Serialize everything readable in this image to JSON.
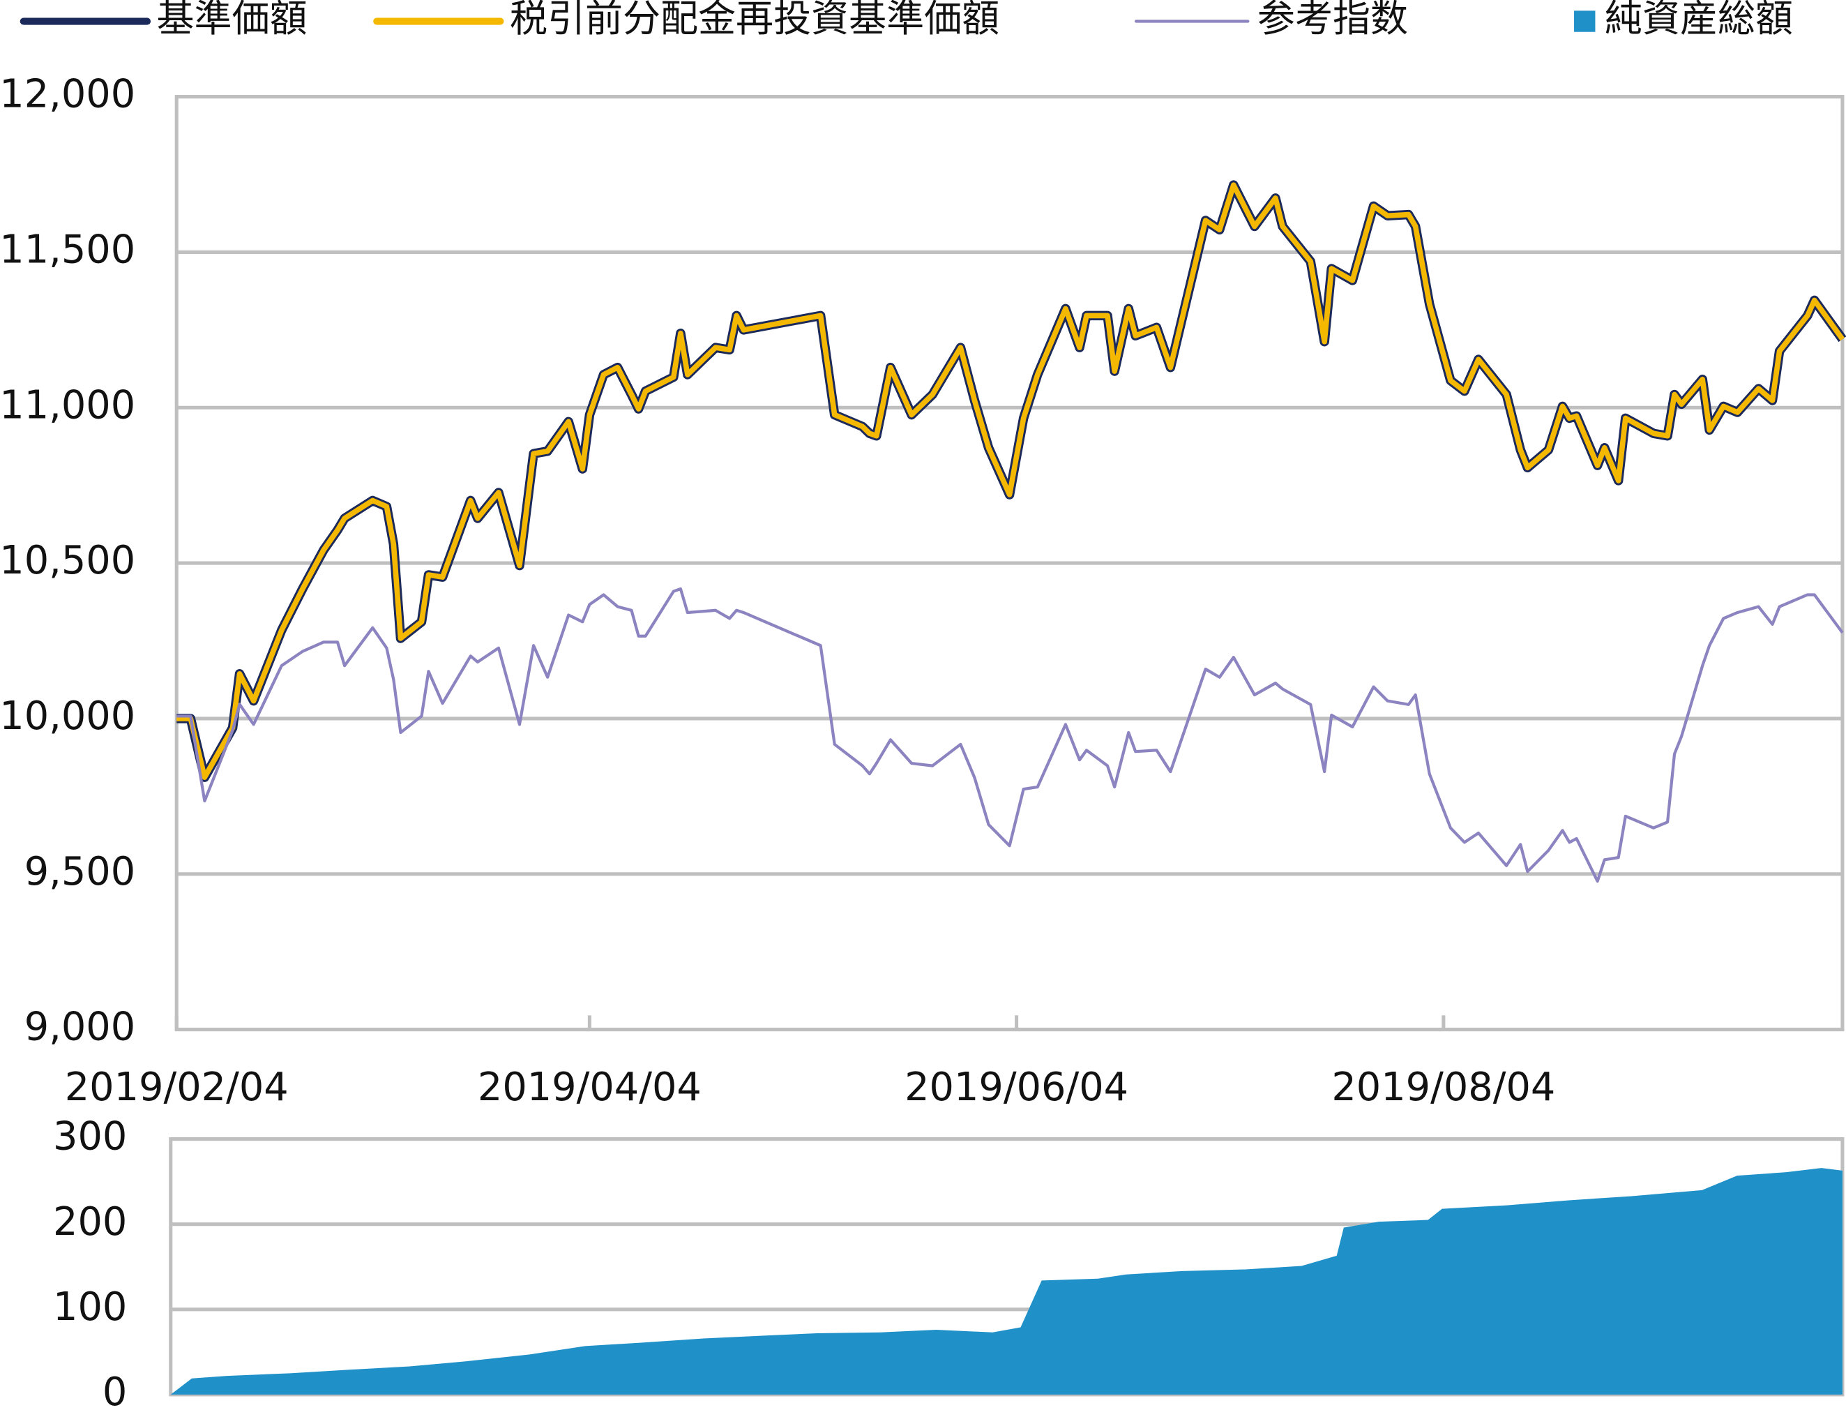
{
  "chart_data": [
    {
      "type": "line",
      "x": [
        "2019/02/04",
        "2019/02/06",
        "2019/02/08",
        "2019/02/12",
        "2019/02/13",
        "2019/02/15",
        "2019/02/19",
        "2019/02/22",
        "2019/02/25",
        "2019/02/27",
        "2019/02/28",
        "2019/03/04",
        "2019/03/06",
        "2019/03/07",
        "2019/03/08",
        "2019/03/11",
        "2019/03/12",
        "2019/03/14",
        "2019/03/18",
        "2019/03/19",
        "2019/03/22",
        "2019/03/25",
        "2019/03/27",
        "2019/03/29",
        "2019/04/01",
        "2019/04/03",
        "2019/04/04",
        "2019/04/06",
        "2019/04/08",
        "2019/04/10",
        "2019/04/11",
        "2019/04/12",
        "2019/04/16",
        "2019/04/17",
        "2019/04/18",
        "2019/04/22",
        "2019/04/24",
        "2019/04/25",
        "2019/04/26",
        "2019/05/07",
        "2019/05/09",
        "2019/05/13",
        "2019/05/14",
        "2019/05/15",
        "2019/05/17",
        "2019/05/20",
        "2019/05/23",
        "2019/05/27",
        "2019/05/29",
        "2019/05/31",
        "2019/06/03",
        "2019/06/05",
        "2019/06/07",
        "2019/06/11",
        "2019/06/13",
        "2019/06/14",
        "2019/06/17",
        "2019/06/18",
        "2019/06/20",
        "2019/06/21",
        "2019/06/24",
        "2019/06/26",
        "2019/07/01",
        "2019/07/03",
        "2019/07/05",
        "2019/07/08",
        "2019/07/11",
        "2019/07/12",
        "2019/07/16",
        "2019/07/18",
        "2019/07/19",
        "2019/07/22",
        "2019/07/25",
        "2019/07/27",
        "2019/07/30",
        "2019/07/31",
        "2019/08/02",
        "2019/08/05",
        "2019/08/07",
        "2019/08/09",
        "2019/08/13",
        "2019/08/15",
        "2019/08/16",
        "2019/08/19",
        "2019/08/21",
        "2019/08/22",
        "2019/08/23",
        "2019/08/26",
        "2019/08/27",
        "2019/08/29",
        "2019/08/30",
        "2019/09/03",
        "2019/09/05",
        "2019/09/06",
        "2019/09/07",
        "2019/09/10",
        "2019/09/11",
        "2019/09/13",
        "2019/09/15",
        "2019/09/18",
        "2019/09/20",
        "2019/09/21",
        "2019/09/25",
        "2019/09/26",
        "2019/09/30"
      ],
      "series": [
        {
          "name": "基準価額",
          "color": "#1b2a5a",
          "values": [
            10000,
            10000,
            9811,
            9970,
            10144,
            10057,
            10284,
            10417,
            10542,
            10606,
            10644,
            10701,
            10682,
            10561,
            10258,
            10311,
            10462,
            10455,
            10701,
            10644,
            10727,
            10492,
            10852,
            10860,
            10955,
            10803,
            10977,
            11106,
            11129,
            11042,
            10996,
            11053,
            11098,
            11239,
            11106,
            11193,
            11186,
            11296,
            11250,
            11296,
            10977,
            10939,
            10917,
            10909,
            11129,
            10977,
            11042,
            11193,
            11023,
            10871,
            10720,
            10966,
            11106,
            11318,
            11193,
            11296,
            11296,
            11117,
            11318,
            11231,
            11258,
            11129,
            11602,
            11572,
            11716,
            11583,
            11674,
            11583,
            11470,
            11212,
            11447,
            11409,
            11648,
            11617,
            11621,
            11583,
            11333,
            11087,
            11053,
            11155,
            11042,
            10864,
            10807,
            10864,
            11004,
            10966,
            10973,
            10814,
            10871,
            10765,
            10966,
            10917,
            10909,
            11042,
            11011,
            11091,
            10928,
            11004,
            10985,
            11061,
            11023,
            11182,
            11296,
            11345,
            11220
          ]
        },
        {
          "name": "税引前分配金再投資基準価額",
          "color": "#f5b800",
          "values": [
            10000,
            10000,
            9811,
            9970,
            10144,
            10057,
            10284,
            10417,
            10542,
            10606,
            10644,
            10701,
            10682,
            10561,
            10258,
            10311,
            10462,
            10455,
            10701,
            10644,
            10727,
            10492,
            10852,
            10860,
            10955,
            10803,
            10977,
            11106,
            11129,
            11042,
            10996,
            11053,
            11098,
            11239,
            11106,
            11193,
            11186,
            11296,
            11250,
            11296,
            10977,
            10939,
            10917,
            10909,
            11129,
            10977,
            11042,
            11193,
            11023,
            10871,
            10720,
            10966,
            11106,
            11318,
            11193,
            11296,
            11296,
            11117,
            11318,
            11231,
            11258,
            11129,
            11602,
            11572,
            11716,
            11583,
            11674,
            11583,
            11470,
            11212,
            11447,
            11409,
            11648,
            11617,
            11621,
            11583,
            11333,
            11087,
            11053,
            11155,
            11042,
            10864,
            10807,
            10864,
            11004,
            10966,
            10973,
            10814,
            10871,
            10765,
            10966,
            10917,
            10909,
            11042,
            11011,
            11091,
            10928,
            11004,
            10985,
            11061,
            11023,
            11182,
            11296,
            11345,
            11220
          ]
        },
        {
          "name": "参考指数",
          "color": "#8b84c0",
          "values": [
            10008,
            10008,
            9735,
            9962,
            10046,
            9981,
            10170,
            10216,
            10246,
            10246,
            10170,
            10292,
            10227,
            10125,
            9955,
            10008,
            10152,
            10049,
            10201,
            10182,
            10227,
            9981,
            10235,
            10133,
            10333,
            10311,
            10367,
            10398,
            10360,
            10348,
            10265,
            10265,
            10409,
            10417,
            10341,
            10348,
            10322,
            10348,
            10341,
            10235,
            9917,
            9848,
            9822,
            9856,
            9932,
            9856,
            9848,
            9917,
            9810,
            9659,
            9591,
            9773,
            9780,
            9981,
            9867,
            9898,
            9848,
            9780,
            9955,
            9894,
            9898,
            9829,
            10159,
            10133,
            10197,
            10076,
            10114,
            10095,
            10045,
            9829,
            10011,
            9973,
            10102,
            10057,
            10045,
            10076,
            9822,
            9648,
            9602,
            9632,
            9527,
            9595,
            9508,
            9576,
            9640,
            9602,
            9614,
            9477,
            9546,
            9553,
            9686,
            9648,
            9667,
            9886,
            9943,
            10170,
            10235,
            10322,
            10341,
            10360,
            10303,
            10360,
            10398,
            10398,
            10276
          ]
        }
      ],
      "xlim": [
        "2019/02/04",
        "2019/09/30"
      ],
      "xticks": [
        "2019/02/04",
        "2019/04/04",
        "2019/06/04",
        "2019/08/04"
      ],
      "ylim": [
        9000,
        12000
      ],
      "yticks": [
        {
          "value": 9000,
          "label": "9,000"
        },
        {
          "value": 9500,
          "label": "9,500"
        },
        {
          "value": 10000,
          "label": "10,000"
        },
        {
          "value": 10500,
          "label": "10,500"
        },
        {
          "value": 11000,
          "label": "11,000"
        },
        {
          "value": 11500,
          "label": "11,500"
        },
        {
          "value": 12000,
          "label": "12,000"
        }
      ],
      "grid": true
    },
    {
      "type": "area",
      "x": [
        "2019/02/04",
        "2019/02/07",
        "2019/02/12",
        "2019/02/21",
        "2019/03/01",
        "2019/03/10",
        "2019/03/18",
        "2019/03/27",
        "2019/04/04",
        "2019/04/12",
        "2019/04/21",
        "2019/04/29",
        "2019/05/07",
        "2019/05/16",
        "2019/05/24",
        "2019/06/01",
        "2019/06/05",
        "2019/06/08",
        "2019/06/16",
        "2019/06/20",
        "2019/06/28",
        "2019/07/07",
        "2019/07/15",
        "2019/07/20",
        "2019/07/21",
        "2019/07/26",
        "2019/08/02",
        "2019/08/04",
        "2019/08/13",
        "2019/08/22",
        "2019/08/31",
        "2019/09/10",
        "2019/09/15",
        "2019/09/22",
        "2019/09/27",
        "2019/09/30"
      ],
      "series": [
        {
          "name": "純資産総額",
          "color": "#2090c8",
          "values": [
            0,
            19,
            22,
            25,
            29,
            33,
            39,
            47,
            57,
            61,
            66,
            69,
            72,
            73,
            76,
            73,
            79,
            134,
            136,
            141,
            145,
            147,
            151,
            163,
            196,
            203,
            205,
            218,
            222,
            228,
            233,
            240,
            257,
            261,
            266,
            263
          ]
        }
      ],
      "xlim": [
        "2019/02/04",
        "2019/09/30"
      ],
      "ylim": [
        0,
        300
      ],
      "yticks": [
        0,
        100,
        200,
        300
      ],
      "grid": true
    }
  ]
}
